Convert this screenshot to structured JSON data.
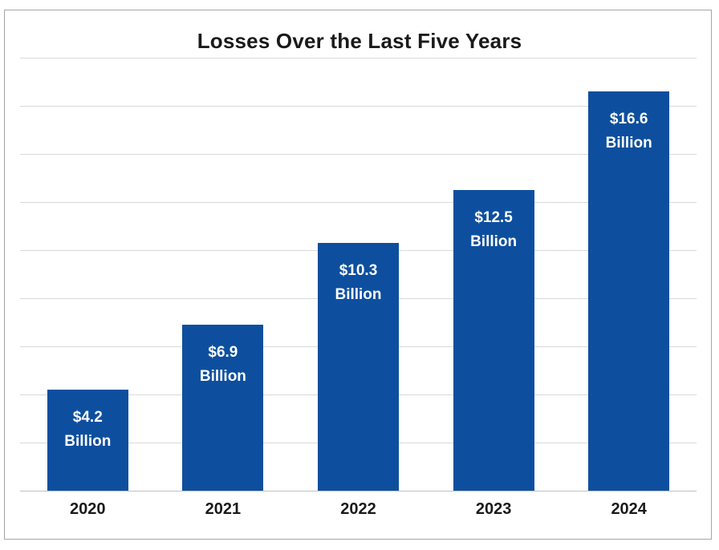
{
  "chart_data": {
    "type": "bar",
    "title": "Losses Over the Last Five Years",
    "categories": [
      "2020",
      "2021",
      "2022",
      "2023",
      "2024"
    ],
    "values": [
      4.2,
      6.9,
      10.3,
      12.5,
      16.6
    ],
    "bar_labels": [
      [
        "$4.2",
        "Billion"
      ],
      [
        "$6.9",
        "Billion"
      ],
      [
        "$10.3",
        "Billion"
      ],
      [
        "$12.5",
        "Billion"
      ],
      [
        "$16.6",
        "Billion"
      ]
    ],
    "unit": "Billion USD",
    "xlabel": "",
    "ylabel": "",
    "ylim": [
      0,
      18
    ],
    "gridline_step": 2,
    "grid": true,
    "legend_position": "none",
    "y_axis_labels_visible": false,
    "colors": {
      "bar": "#0d4f9e",
      "bar_label_text": "#ffffff",
      "gridline": "#d9d9d9",
      "axis_line": "#c0c0c0",
      "title_text": "#1a1a1a",
      "tick_label_text": "#1a1a1a",
      "border": "#a6a6a6",
      "background": "#ffffff"
    }
  }
}
